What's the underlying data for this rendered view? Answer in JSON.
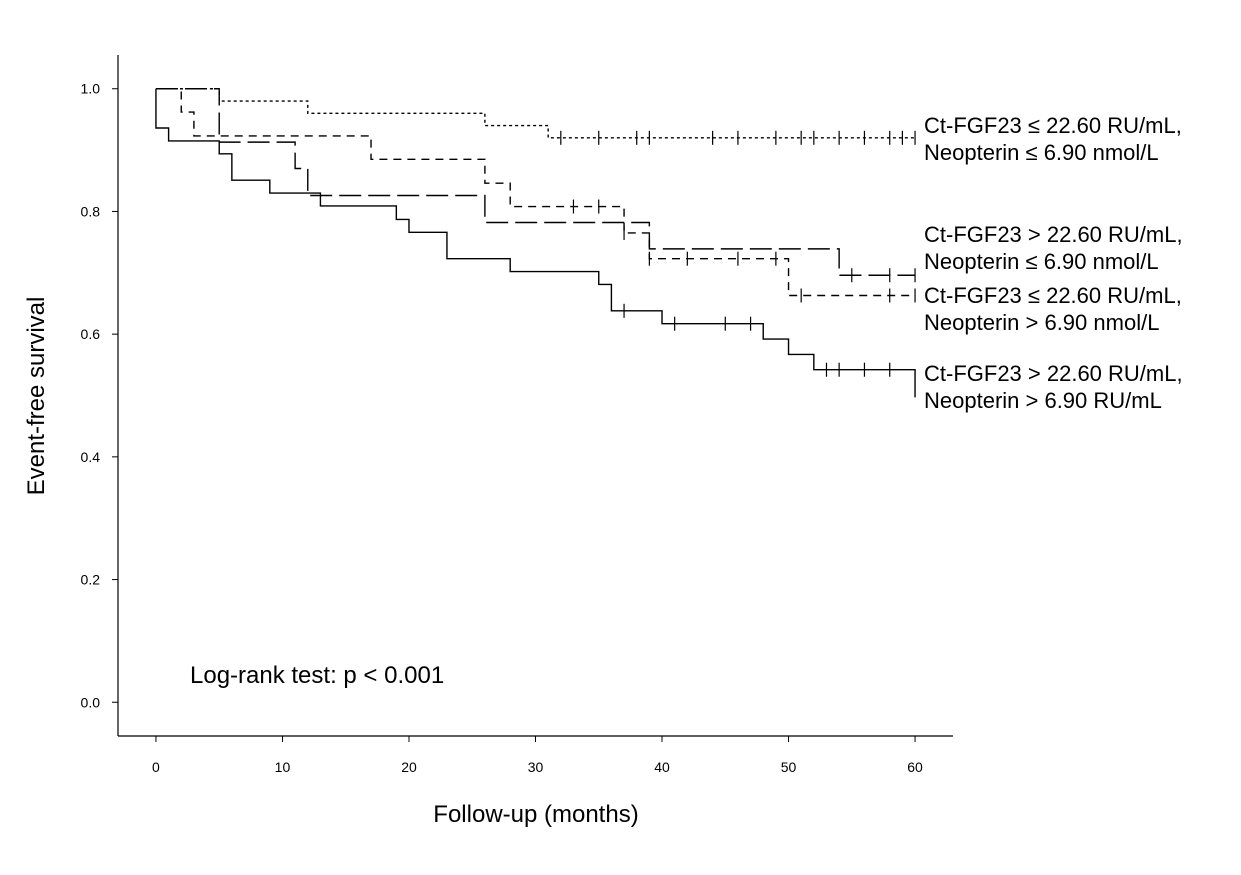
{
  "chart_data": {
    "type": "line",
    "subtype": "kaplan-meier step curves",
    "xlabel": "Follow-up (months)",
    "ylabel": "Event-free survival",
    "xlim": [
      -3,
      63
    ],
    "ylim": [
      -0.055,
      1.055
    ],
    "xticks": [
      0,
      10,
      20,
      30,
      40,
      50,
      60
    ],
    "yticks": [
      0.0,
      0.2,
      0.4,
      0.6,
      0.8,
      1.0
    ],
    "xtick_labels": [
      "0",
      "10",
      "20",
      "30",
      "40",
      "50",
      "60"
    ],
    "ytick_labels": [
      "0.0",
      "0.2",
      "0.4",
      "0.6",
      "0.8",
      "1.0"
    ],
    "grid": false,
    "annotation": "Log-rank test: p < 0.001",
    "series": [
      {
        "label_lines": [
          "Ct-FGF23 ≤ 22.60 RU/mL,",
          "Neopterin ≤ 6.90 nmol/L"
        ],
        "dash": "dotted",
        "steps": [
          [
            0,
            1.0
          ],
          [
            2,
            1.0
          ],
          [
            5,
            0.98
          ],
          [
            12,
            0.96
          ],
          [
            26,
            0.94
          ],
          [
            31,
            0.92
          ],
          [
            60,
            0.92
          ]
        ],
        "end": 60,
        "censored": [
          32,
          35,
          38,
          39,
          44,
          46,
          49,
          51,
          52,
          54,
          56,
          58,
          59,
          60
        ]
      },
      {
        "label_lines": [
          "Ct-FGF23 > 22.60 RU/mL,",
          "Neopterin ≤ 6.90 nmol/L"
        ],
        "dash": "long-dash",
        "steps": [
          [
            0,
            1.0
          ],
          [
            5,
            0.913
          ],
          [
            11,
            0.87
          ],
          [
            12,
            0.826
          ],
          [
            26,
            0.782
          ],
          [
            39,
            0.739
          ],
          [
            54,
            0.696
          ],
          [
            60,
            0.696
          ]
        ],
        "end": 60,
        "censored": [
          55,
          58,
          60
        ]
      },
      {
        "label_lines": [
          "Ct-FGF23 ≤ 22.60 RU/mL,",
          "Neopterin > 6.90 nmol/L"
        ],
        "dash": "short-dash",
        "steps": [
          [
            0,
            1.0
          ],
          [
            2,
            0.962
          ],
          [
            3,
            0.923
          ],
          [
            17,
            0.885
          ],
          [
            26,
            0.846
          ],
          [
            28,
            0.808
          ],
          [
            37,
            0.765
          ],
          [
            39,
            0.723
          ],
          [
            50,
            0.663
          ],
          [
            60,
            0.663
          ]
        ],
        "end": 60,
        "censored": [
          33,
          35,
          37,
          39,
          42,
          46,
          49,
          51,
          58,
          60
        ]
      },
      {
        "label_lines": [
          "Ct-FGF23 > 22.60 RU/mL,",
          "Neopterin > 6.90 RU/mL"
        ],
        "dash": "solid",
        "steps": [
          [
            0,
            0.936
          ],
          [
            1,
            0.915
          ],
          [
            5,
            0.894
          ],
          [
            6,
            0.851
          ],
          [
            9,
            0.83
          ],
          [
            13,
            0.809
          ],
          [
            19,
            0.787
          ],
          [
            20,
            0.766
          ],
          [
            23,
            0.723
          ],
          [
            28,
            0.702
          ],
          [
            35,
            0.681
          ],
          [
            36,
            0.638
          ],
          [
            40,
            0.617
          ],
          [
            48,
            0.592
          ],
          [
            50,
            0.567
          ],
          [
            52,
            0.542
          ],
          [
            60,
            0.542
          ]
        ],
        "end": 60,
        "end_drop": 0.497,
        "censored": [
          37,
          41,
          45,
          47,
          53,
          54,
          56,
          58
        ]
      }
    ]
  }
}
